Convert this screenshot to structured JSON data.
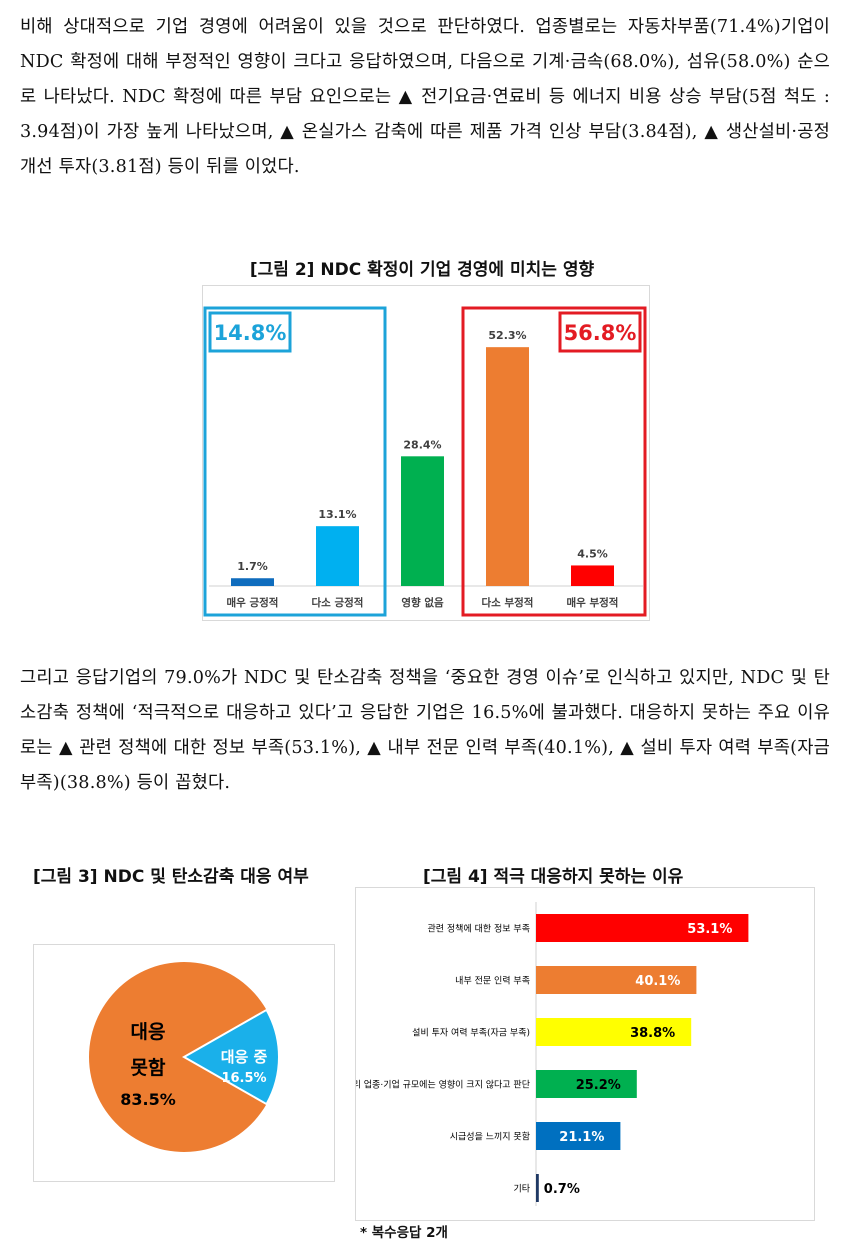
{
  "paragraphs": {
    "p1": "비해 상대적으로 기업 경영에 어려움이 있을 것으로 판단하였다. 업종별로는 자동차부품(71.4%)기업이 NDC 확정에 대해 부정적인 영향이 크다고 응답하였으며, 다음으로 기계·금속(68.0%), 섬유(58.0%) 순으로 나타났다. NDC 확정에 따른 부담 요인으로는 ▲ 전기요금·연료비 등 에너지 비용 상승 부담(5점 척도 : 3.94점)이 가장 높게 나타났으며, ▲ 온실가스 감축에 따른 제품 가격 인상 부담(3.84점), ▲ 생산설비·공정 개선 투자(3.81점) 등이 뒤를 이었다.",
    "p2": "그리고 응답기업의 79.0%가 NDC 및 탄소감축 정책을 ‘중요한 경영 이슈’로 인식하고 있지만, NDC 및 탄소감축 정책에 ‘적극적으로 대응하고 있다’고 응답한 기업은 16.5%에 불과했다. 대응하지 못하는 주요 이유로는 ▲ 관련 정책에 대한 정보 부족(53.1%), ▲ 내부 전문 인력 부족(40.1%), ▲ 설비 투자 여력 부족(자금 부족)(38.8%) 등이 꼽혔다."
  },
  "figures": {
    "fig2_title": "[그림 2] NDC 확정이 기업 경영에 미치는 영향",
    "fig3_title": "[그림 3] NDC 및 탄소감축 대응 여부",
    "fig4_title": "[그림 4] 적극 대응하지 못하는 이유"
  },
  "note": "* 복수응답 2개",
  "chart_data": [
    {
      "type": "bar",
      "categories": [
        "매우 긍정적",
        "다소 긍정적",
        "영향 없음",
        "다소 부정적",
        "매우 부정적"
      ],
      "values": [
        1.7,
        13.1,
        28.4,
        52.3,
        4.5
      ],
      "value_labels": [
        "1.7%",
        "13.1%",
        "28.4%",
        "52.3%",
        "4.5%"
      ],
      "colors": [
        "#0f6cbd",
        "#00b0f0",
        "#00b050",
        "#ed7d31",
        "#ff0000"
      ],
      "ylim": [
        0,
        60
      ],
      "group_labels": [
        {
          "text": "14.8%",
          "color": "#1ca3d9"
        },
        {
          "text": "56.8%",
          "color": "#e31b23"
        }
      ]
    },
    {
      "type": "pie",
      "labels": [
        "대응 못함",
        "대응 중"
      ],
      "values": [
        83.5,
        16.5
      ],
      "value_labels": [
        "83.5%",
        "16.5%"
      ],
      "colors": [
        "#ed7d31",
        "#1ab0ea"
      ],
      "label_lines": [
        [
          "대응",
          "못함",
          "83.5%"
        ],
        [
          "대응 중",
          "16.5%"
        ]
      ]
    },
    {
      "type": "bar",
      "orientation": "horizontal",
      "categories": [
        "관련 정책에 대한 정보 부족",
        "내부 전문 인력 부족",
        "설비 투자 여력 부족(자금 부족)",
        "우리 업종·기업 규모에는 영향이 크지 않다고 판단",
        "시급성을 느끼지 못함",
        "기타"
      ],
      "values": [
        53.1,
        40.1,
        38.8,
        25.2,
        21.1,
        0.7
      ],
      "value_labels": [
        "53.1%",
        "40.1%",
        "38.8%",
        "25.2%",
        "21.1%",
        "0.7%"
      ],
      "colors": [
        "#ff0000",
        "#ed7d31",
        "#ffff00",
        "#00b050",
        "#0070c0",
        "#1f3864"
      ],
      "label_colors": [
        "#ffffff",
        "#ffffff",
        "#000000",
        "#000000",
        "#ffffff",
        "#000000"
      ],
      "xlim": [
        0,
        60
      ]
    }
  ]
}
